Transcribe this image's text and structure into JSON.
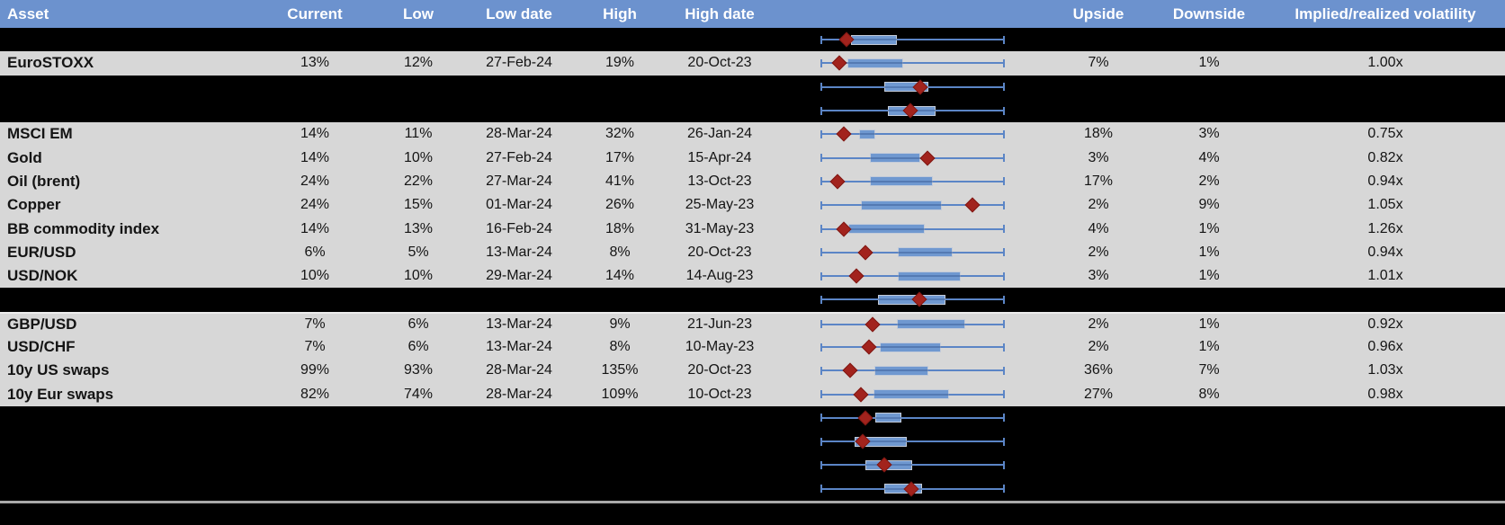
{
  "header": {
    "columns": [
      "Asset",
      "Current",
      "Low",
      "Low date",
      "High",
      "High date",
      "",
      "Upside",
      "Downside",
      "Implied/realized volatility"
    ]
  },
  "colors": {
    "header_blue": "#6C92CE",
    "row_gray": "#D7D7D7",
    "band_black": "#000000",
    "box_blue": "#6F98D0",
    "whisker_blue": "#5B85C6",
    "marker_red": "#A2231D"
  },
  "rows": [
    {
      "type": "hidden",
      "plot": {
        "low": 0,
        "box_start": 16.4,
        "box_end": 41.3,
        "marker": 14.1,
        "high": 100
      }
    },
    {
      "type": "data",
      "asset": "EuroSTOXX",
      "current": "13%",
      "low": "12%",
      "low_date": "27-Feb-24",
      "high": "19%",
      "high_date": "20-Oct-23",
      "upside": "7%",
      "downside": "1%",
      "iv_rv": "1.00x",
      "plot": {
        "low": 0,
        "box_start": 14.8,
        "box_end": 45.0,
        "marker": 10.4,
        "high": 100
      }
    },
    {
      "type": "hidden",
      "plot": {
        "low": 0,
        "box_start": 34.5,
        "box_end": 58.4,
        "marker": 54.0,
        "high": 100
      }
    },
    {
      "type": "hidden",
      "plot": {
        "low": 0,
        "box_start": 36.4,
        "box_end": 62.4,
        "marker": 48.6,
        "high": 100
      }
    },
    {
      "type": "data",
      "asset": "MSCI EM",
      "current": "14%",
      "low": "11%",
      "low_date": "28-Mar-24",
      "high": "32%",
      "high_date": "26-Jan-24",
      "upside": "18%",
      "downside": "3%",
      "iv_rv": "0.75x",
      "plot": {
        "low": 0,
        "box_start": 21.0,
        "box_end": 29.6,
        "marker": 12.5,
        "high": 100
      }
    },
    {
      "type": "data",
      "asset": "Gold",
      "current": "14%",
      "low": "10%",
      "low_date": "27-Feb-24",
      "high": "17%",
      "high_date": "15-Apr-24",
      "upside": "3%",
      "downside": "4%",
      "iv_rv": "0.82x",
      "plot": {
        "low": 0,
        "box_start": 26.7,
        "box_end": 54.3,
        "marker": 57.9,
        "high": 100
      }
    },
    {
      "type": "data",
      "asset": "Oil (brent)",
      "current": "24%",
      "low": "22%",
      "low_date": "27-Mar-24",
      "high": "41%",
      "high_date": "13-Oct-23",
      "upside": "17%",
      "downside": "2%",
      "iv_rv": "0.94x",
      "plot": {
        "low": 0,
        "box_start": 27.0,
        "box_end": 61.1,
        "marker": 9.3,
        "high": 100
      }
    },
    {
      "type": "data",
      "asset": "Copper",
      "current": "24%",
      "low": "15%",
      "low_date": "01-Mar-24",
      "high": "26%",
      "high_date": "25-May-23",
      "upside": "2%",
      "downside": "9%",
      "iv_rv": "1.05x",
      "plot": {
        "low": 0,
        "box_start": 22.1,
        "box_end": 65.7,
        "marker": 82.4,
        "high": 100
      }
    },
    {
      "type": "data",
      "asset": "BB commodity index",
      "current": "14%",
      "low": "13%",
      "low_date": "16-Feb-24",
      "high": "18%",
      "high_date": "31-May-23",
      "upside": "4%",
      "downside": "1%",
      "iv_rv": "1.26x",
      "plot": {
        "low": 0,
        "box_start": 15.3,
        "box_end": 56.4,
        "marker": 12.5,
        "high": 100
      }
    },
    {
      "type": "data",
      "asset": "EUR/USD",
      "current": "6%",
      "low": "5%",
      "low_date": "13-Mar-24",
      "high": "8%",
      "high_date": "20-Oct-23",
      "upside": "2%",
      "downside": "1%",
      "iv_rv": "0.94x",
      "plot": {
        "low": 0,
        "box_start": 42.1,
        "box_end": 71.7,
        "marker": 24.5,
        "high": 100
      }
    },
    {
      "type": "data",
      "asset": "USD/NOK",
      "current": "10%",
      "low": "10%",
      "low_date": "29-Mar-24",
      "high": "14%",
      "high_date": "14-Aug-23",
      "upside": "3%",
      "downside": "1%",
      "iv_rv": "1.01x",
      "plot": {
        "low": 0,
        "box_start": 41.8,
        "box_end": 76.2,
        "marker": 19.4,
        "high": 100
      }
    },
    {
      "type": "hidden",
      "plot": {
        "low": 0,
        "box_start": 31.2,
        "box_end": 67.8,
        "marker": 53.5,
        "high": 100
      }
    },
    {
      "type": "data",
      "sep_top": true,
      "asset": "GBP/USD",
      "current": "7%",
      "low": "6%",
      "low_date": "13-Mar-24",
      "high": "9%",
      "high_date": "21-Jun-23",
      "upside": "2%",
      "downside": "1%",
      "iv_rv": "0.92x",
      "plot": {
        "low": 0,
        "box_start": 41.6,
        "box_end": 78.4,
        "marker": 28.3,
        "high": 100
      }
    },
    {
      "type": "data",
      "asset": "USD/CHF",
      "current": "7%",
      "low": "6%",
      "low_date": "13-Mar-24",
      "high": "8%",
      "high_date": "10-May-23",
      "upside": "2%",
      "downside": "1%",
      "iv_rv": "0.96x",
      "plot": {
        "low": 0,
        "box_start": 32.0,
        "box_end": 65.4,
        "marker": 26.2,
        "high": 100
      }
    },
    {
      "type": "data",
      "asset": "10y US swaps",
      "current": "99%",
      "low": "93%",
      "low_date": "28-Mar-24",
      "high": "135%",
      "high_date": "20-Oct-23",
      "upside": "36%",
      "downside": "7%",
      "iv_rv": "1.03x",
      "plot": {
        "low": 0,
        "box_start": 29.1,
        "box_end": 58.7,
        "marker": 16.1,
        "high": 100
      }
    },
    {
      "type": "data",
      "asset": "10y Eur swaps",
      "current": "82%",
      "low": "74%",
      "low_date": "28-Mar-24",
      "high": "109%",
      "high_date": "10-Oct-23",
      "upside": "27%",
      "downside": "8%",
      "iv_rv": "0.98x",
      "plot": {
        "low": 0,
        "box_start": 28.8,
        "box_end": 69.8,
        "marker": 22.1,
        "high": 100
      }
    },
    {
      "type": "hidden",
      "plot": {
        "low": 0,
        "box_start": 29.6,
        "box_end": 43.8,
        "marker": 24.5,
        "high": 100
      }
    },
    {
      "type": "hidden",
      "plot": {
        "low": 0,
        "box_start": 18.5,
        "box_end": 46.7,
        "marker": 23.1,
        "high": 100
      }
    },
    {
      "type": "hidden",
      "plot": {
        "low": 0,
        "box_start": 24.2,
        "box_end": 49.9,
        "marker": 34.5,
        "high": 100
      }
    },
    {
      "type": "hidden",
      "plot": {
        "low": 0,
        "box_start": 34.8,
        "box_end": 55.1,
        "marker": 49.4,
        "high": 100
      }
    }
  ]
}
